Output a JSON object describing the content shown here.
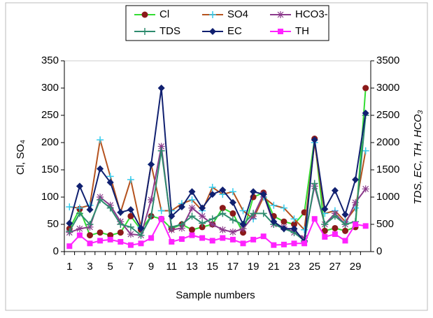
{
  "chart_data": {
    "type": "line",
    "xlabel": "Sample numbers",
    "ylabel": "Cl, SO₄",
    "y2label": "TDS, EC, TH, HCO₃",
    "categories": [
      "1",
      null,
      "3",
      null,
      "5",
      null,
      "7",
      null,
      "9",
      null,
      "11",
      null,
      "13",
      null,
      "15",
      null,
      "17",
      null,
      "19",
      null,
      "21",
      null,
      "23",
      null,
      "25",
      null,
      "27",
      null,
      "29",
      null
    ],
    "ylim": [
      0,
      350
    ],
    "yticks": [
      0,
      50,
      100,
      150,
      200,
      250,
      300,
      350
    ],
    "y2lim": [
      0,
      3500
    ],
    "y2ticks": [
      0,
      500,
      1000,
      1500,
      2000,
      2500,
      3000,
      3500
    ],
    "series": [
      {
        "name": "Cl",
        "color": "#33dd33",
        "marker": "circle",
        "marker_color": "#8b1a1a",
        "values": [
          42,
          78,
          30,
          35,
          30,
          35,
          65,
          40,
          65,
          60,
          42,
          50,
          40,
          45,
          50,
          80,
          70,
          35,
          100,
          108,
          65,
          55,
          50,
          72,
          207,
          38,
          43,
          38,
          45,
          300
        ]
      },
      {
        "name": "SO4",
        "color": "#b5521e",
        "marker": "plus",
        "marker_color": "#33ccee",
        "values": [
          82,
          80,
          85,
          205,
          138,
          72,
          132,
          45,
          160,
          75,
          75,
          88,
          95,
          75,
          118,
          105,
          110,
          75,
          60,
          100,
          85,
          80,
          60,
          40,
          200,
          70,
          75,
          55,
          80,
          185
        ]
      },
      {
        "name": "HCO3-",
        "color": "#8b3a8b",
        "marker": "star",
        "marker_color": "#8b3a8b",
        "axis": "y2",
        "values": [
          350,
          420,
          450,
          1000,
          850,
          550,
          320,
          300,
          950,
          1930,
          400,
          430,
          800,
          650,
          500,
          400,
          360,
          420,
          650,
          1050,
          500,
          450,
          350,
          250,
          1200,
          500,
          700,
          500,
          900,
          1150
        ]
      },
      {
        "name": "TDS",
        "color": "#2e8b6e",
        "marker": "plus",
        "marker_color": "#2e8b6e",
        "axis": "y2",
        "values": [
          370,
          700,
          500,
          950,
          800,
          500,
          450,
          300,
          650,
          1850,
          450,
          500,
          650,
          520,
          600,
          700,
          580,
          500,
          700,
          700,
          500,
          420,
          350,
          200,
          1250,
          500,
          650,
          500,
          550,
          2500
        ]
      },
      {
        "name": "EC",
        "color": "#102070",
        "marker": "diamond",
        "marker_color": "#102070",
        "axis": "y2",
        "values": [
          520,
          1200,
          770,
          1520,
          1270,
          720,
          770,
          430,
          1600,
          3000,
          650,
          820,
          1100,
          800,
          1050,
          1130,
          900,
          500,
          1100,
          1050,
          550,
          420,
          420,
          180,
          2050,
          780,
          1120,
          680,
          1320,
          2540
        ]
      },
      {
        "name": "TH",
        "color": "#ff22ff",
        "marker": "square",
        "marker_color": "#ff22ff",
        "axis": "y2",
        "values": [
          100,
          300,
          150,
          200,
          220,
          180,
          120,
          150,
          250,
          600,
          180,
          230,
          300,
          250,
          200,
          250,
          220,
          150,
          220,
          280,
          120,
          130,
          150,
          150,
          600,
          270,
          320,
          200,
          500,
          470
        ]
      }
    ]
  }
}
